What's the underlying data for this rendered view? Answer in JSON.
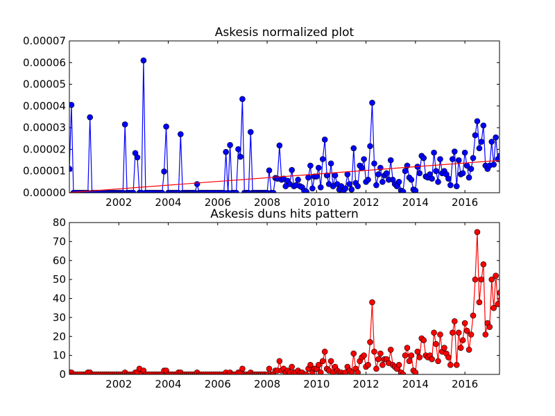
{
  "chart_data": [
    {
      "type": "line",
      "title": "Askesis normalized plot",
      "xlabel": "",
      "ylabel": "",
      "xlim": [
        2000.0,
        2017.4
      ],
      "ylim": [
        0,
        7e-05
      ],
      "x_ticks": [
        2002,
        2004,
        2006,
        2008,
        2010,
        2012,
        2014,
        2016
      ],
      "y_ticks": [
        "0.00000",
        "0.00001",
        "0.00002",
        "0.00003",
        "0.00004",
        "0.00005",
        "0.00006",
        "0.00007"
      ],
      "grid": false,
      "legend": "none",
      "colors": {
        "series": "#0000ff",
        "trend": "#ff0000"
      },
      "series": [
        {
          "values": [
            1.1e-05,
            4.05e-05,
            0,
            0,
            0,
            0,
            0,
            0,
            0,
            0,
            3.48e-05,
            0,
            0,
            0,
            0,
            0,
            0,
            0,
            0,
            0,
            0,
            0,
            0,
            0,
            0,
            0,
            0,
            3.15e-05,
            0,
            0,
            0,
            0,
            1.83e-05,
            1.63e-05,
            0,
            0,
            6.1e-05,
            0,
            0,
            0,
            0,
            0,
            0,
            0,
            0,
            0,
            9.8e-06,
            3.05e-05,
            0,
            0,
            0,
            0,
            0,
            0,
            2.7e-05,
            0,
            0,
            0,
            0,
            0,
            0,
            0,
            4e-06,
            0,
            0,
            0,
            0,
            0,
            0,
            0,
            0,
            0,
            0,
            0,
            0,
            0,
            1.88e-05,
            0,
            2.2e-05,
            0,
            0,
            0,
            2.01e-05,
            1.66e-05,
            4.32e-05,
            0,
            0,
            0,
            2.8e-05,
            0,
            0,
            0,
            0,
            0,
            0,
            0,
            0,
            1.03e-05,
            0,
            0,
            6.8e-06,
            6.5e-06,
            2.18e-05,
            6e-06,
            6.5e-06,
            3e-06,
            5.5e-06,
            4e-06,
            1.05e-05,
            3e-06,
            3.5e-06,
            6e-06,
            3e-06,
            2.5e-06,
            1e-06,
            5e-07,
            7e-06,
            1.25e-05,
            2e-06,
            7.5e-06,
            7.5e-06,
            1.15e-05,
            2.5e-06,
            1.55e-05,
            2.45e-05,
            8e-06,
            4e-06,
            1.35e-05,
            3e-06,
            8e-06,
            4e-06,
            1.5e-06,
            3e-06,
            5e-07,
            2e-06,
            8.5e-06,
            4e-06,
            1.5e-06,
            2.05e-05,
            4.5e-06,
            3e-06,
            1.25e-05,
            1.15e-05,
            1.55e-05,
            5e-06,
            6e-06,
            2.15e-05,
            4.15e-05,
            1.35e-05,
            3.5e-06,
            8.5e-06,
            1.15e-05,
            5e-06,
            8e-06,
            9e-06,
            6e-06,
            1.5e-05,
            6e-06,
            4e-06,
            3e-06,
            5e-06,
            1e-06,
            5e-07,
            1e-05,
            1.25e-05,
            7e-06,
            6e-06,
            1.5e-06,
            1e-06,
            1.2e-05,
            9e-06,
            1.7e-05,
            1.6e-05,
            7.5e-06,
            7e-06,
            8.5e-06,
            6.5e-06,
            1.85e-05,
            1e-05,
            5e-06,
            1.55e-05,
            9e-06,
            1e-05,
            8.5e-06,
            6.5e-06,
            3.5e-06,
            1.55e-05,
            1.9e-05,
            3e-06,
            1.5e-05,
            8.5e-06,
            9e-06,
            1.85e-05,
            1.25e-05,
            7e-06,
            1.1e-05,
            1.6e-05,
            2.65e-05,
            3.3e-05,
            2.05e-05,
            2.35e-05,
            3.1e-05,
            1.25e-05,
            1.1e-05,
            1.25e-05,
            2.35e-05,
            1.3e-05,
            2.55e-05,
            1.55e-05,
            1.7e-05,
            1.4e-05,
            8.5e-06,
            1.4e-05,
            1.4e-05,
            1.25e-05,
            1e-05,
            7e-06,
            7.5e-06,
            1.9e-05,
            9e-06,
            1.9e-05,
            1.25e-05,
            1.75e-05,
            1.8e-05,
            1.6e-05,
            9e-06,
            1.75e-05,
            6e-06,
            1.25e-05,
            1.3e-05,
            9.5e-06,
            7e-06
          ]
        }
      ],
      "trend_line": {
        "x": [
          2000.0,
          2017.4
        ],
        "y": [
          1e-07,
          1.49e-05
        ]
      }
    },
    {
      "type": "line",
      "title": "Askesis duns hits pattern",
      "xlabel": "",
      "ylabel": "",
      "xlim": [
        2000.0,
        2017.4
      ],
      "ylim": [
        0,
        80
      ],
      "x_ticks": [
        2002,
        2004,
        2006,
        2008,
        2010,
        2012,
        2014,
        2016
      ],
      "y_ticks": [
        0,
        10,
        20,
        30,
        40,
        50,
        60,
        70,
        80
      ],
      "grid": false,
      "legend": "none",
      "colors": {
        "series": "#ff0000"
      },
      "series": [
        {
          "values": [
            1,
            1,
            0,
            0,
            0,
            0,
            0,
            0,
            0,
            1,
            1,
            0,
            0,
            0,
            0,
            0,
            0,
            0,
            0,
            0,
            0,
            0,
            0,
            0,
            0,
            0,
            0,
            1,
            0,
            0,
            0,
            0,
            1,
            1,
            3,
            0,
            2,
            0,
            0,
            0,
            0,
            0,
            0,
            0,
            0,
            0,
            2,
            2,
            0,
            0,
            0,
            0,
            0,
            1,
            1,
            0,
            0,
            0,
            0,
            0,
            0,
            0,
            1,
            0,
            0,
            0,
            0,
            0,
            0,
            0,
            0,
            0,
            0,
            0,
            0,
            0,
            1,
            0,
            1,
            0,
            0,
            0,
            1,
            1,
            3,
            0,
            0,
            0,
            1,
            0,
            0,
            0,
            0,
            0,
            0,
            0,
            0,
            3,
            0,
            0,
            2,
            2,
            7,
            2,
            3,
            1,
            2,
            1,
            4,
            1,
            1,
            2,
            1,
            1,
            0,
            0,
            3,
            5,
            1,
            3,
            3,
            5,
            1,
            7,
            12,
            3,
            2,
            7,
            1,
            4,
            2,
            1,
            1,
            0,
            1,
            4,
            2,
            1,
            11,
            3,
            1,
            7,
            9,
            10,
            4,
            5,
            17,
            38,
            12,
            3,
            8,
            11,
            5,
            8,
            8,
            6,
            13,
            5,
            4,
            3,
            5,
            1,
            0,
            10,
            14,
            7,
            10,
            2,
            1,
            12,
            9,
            19,
            18,
            10,
            9,
            10,
            8,
            22,
            16,
            7,
            21,
            12,
            14,
            11,
            9,
            5,
            22,
            28,
            5,
            22,
            14,
            18,
            27,
            23,
            13,
            21,
            31,
            50,
            75,
            38,
            50,
            58,
            21,
            27,
            25,
            50,
            35,
            52,
            37,
            43,
            45,
            31,
            38,
            37,
            34,
            24,
            34,
            34,
            57,
            33,
            76,
            37,
            52,
            47,
            29,
            44,
            18,
            47,
            31,
            22,
            9,
            9
          ]
        }
      ]
    }
  ]
}
